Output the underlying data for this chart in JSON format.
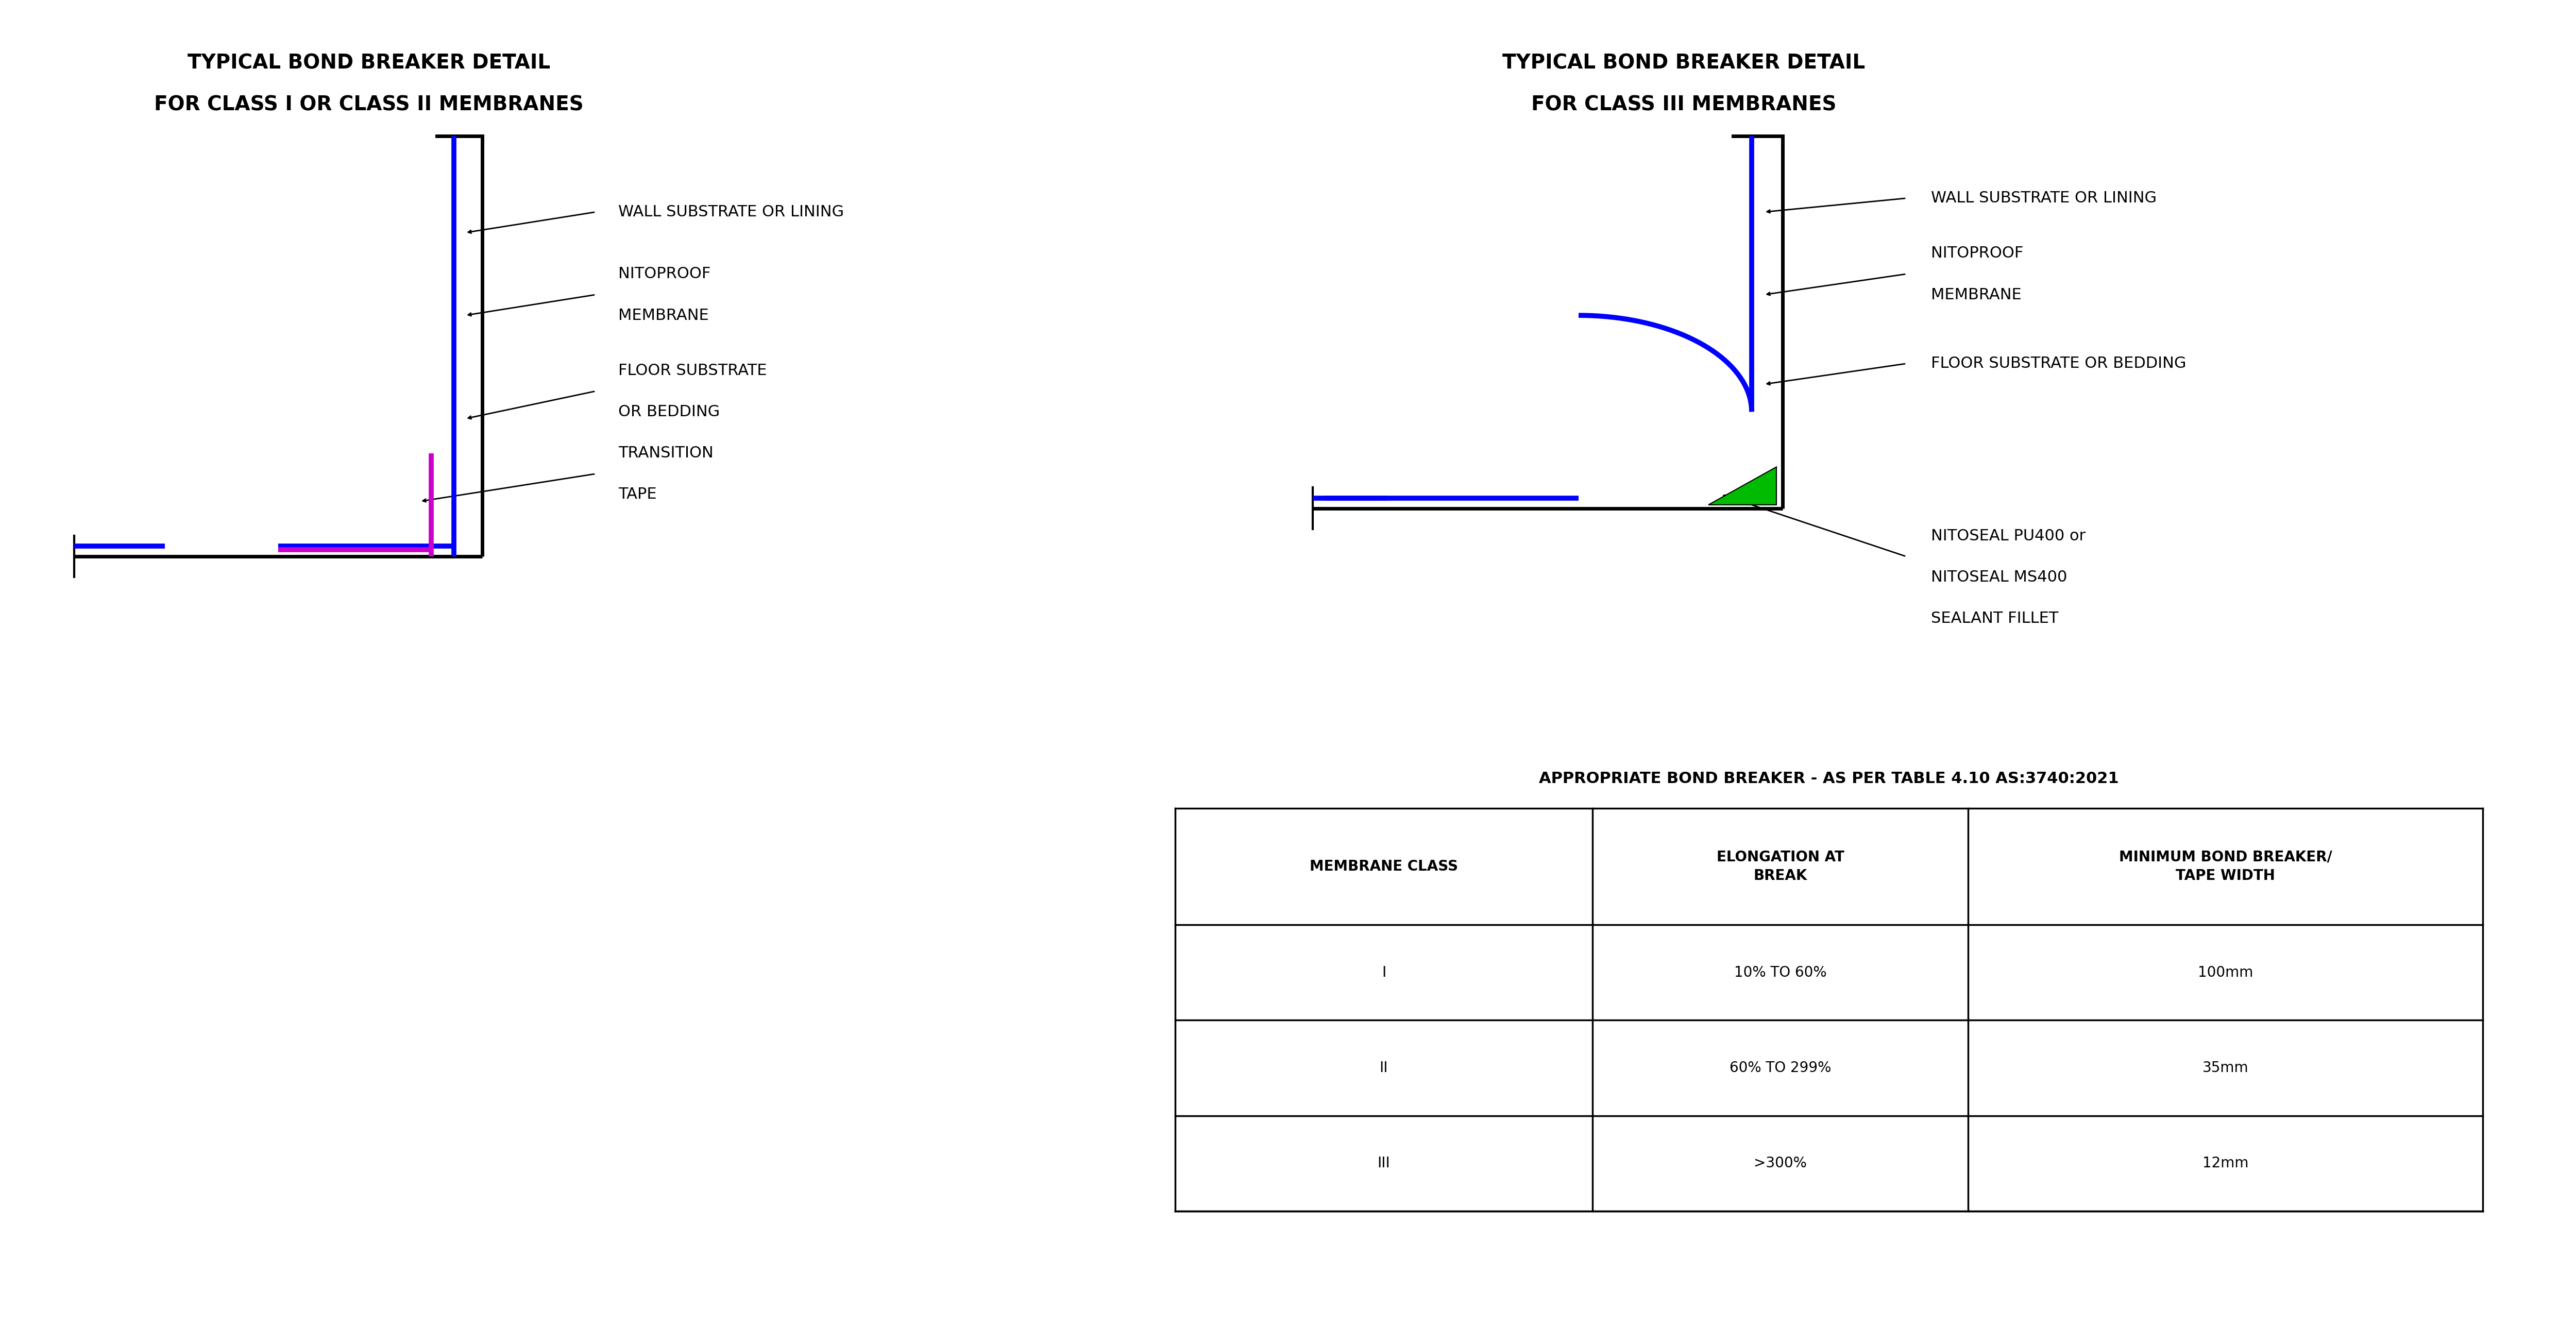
{
  "fig_width": 50.0,
  "fig_height": 25.72,
  "bg_color": "#ffffff",
  "title1_line1": "TYPICAL BOND BREAKER DETAIL",
  "title1_line2": "FOR CLASS I OR CLASS II MEMBRANES",
  "title2_line1": "TYPICAL BOND BREAKER DETAIL",
  "title2_line2": "FOR CLASS III MEMBRANES",
  "table_title": "APPROPRIATE BOND BREAKER - AS PER TABLE 4.10 AS:3740:2021",
  "table_headers": [
    "MEMBRANE CLASS",
    "ELONGATION AT\nBREAK",
    "MINIMUM BOND BREAKER/\nTAPE WIDTH"
  ],
  "table_rows": [
    [
      "I",
      "10% TO 60%",
      "100mm"
    ],
    [
      "II",
      "60% TO 299%",
      "35mm"
    ],
    [
      "III",
      ">300%",
      "12mm"
    ]
  ],
  "black": "#000000",
  "blue": "#0000ff",
  "magenta": "#cc00cc",
  "green": "#00bb00",
  "lw_struct": 5.0,
  "lw_membrane": 7.0,
  "lw_tape": 7.0,
  "lw_leader": 2.0,
  "lw_table": 2.5
}
